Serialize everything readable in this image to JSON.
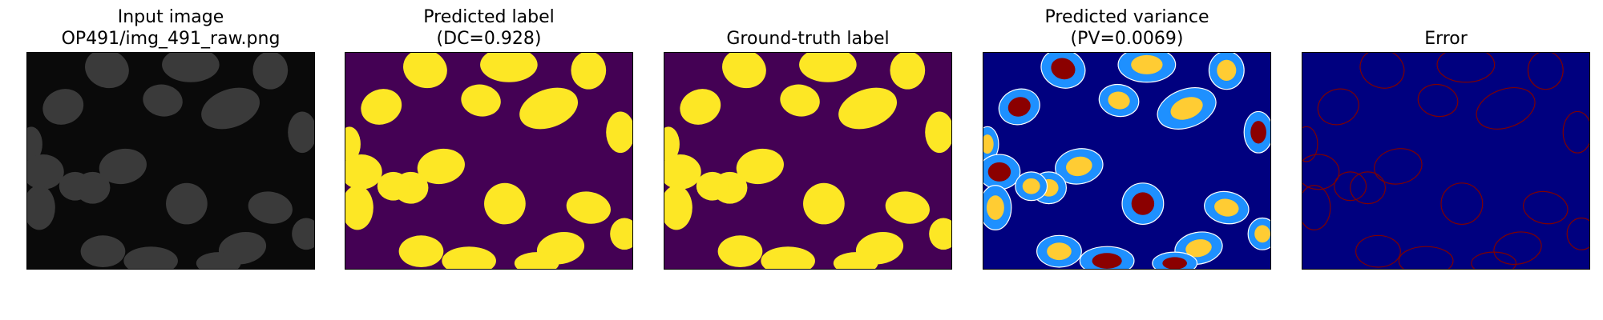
{
  "panels": [
    {
      "title_line1": "Input image",
      "title_line2": "OP491/img_491_raw.png"
    },
    {
      "title_line1": "Predicted label",
      "title_line2": "(DC=0.928)"
    },
    {
      "title_line1": "",
      "title_line2": "Ground-truth label"
    },
    {
      "title_line1": "Predicted variance",
      "title_line2": "(PV=0.0069)"
    },
    {
      "title_line1": "",
      "title_line2": "Error"
    }
  ],
  "colors": {
    "raw_background": "#0a0a0a",
    "raw_nucleus": "#3a3a3a",
    "label_background": "#440154",
    "label_foreground": "#fde725",
    "variance_background": "#00007f",
    "variance_ring": "#1e90ff",
    "variance_high": "#8b0000",
    "error_background": "#00007f",
    "error_marks": "#7f0000"
  }
}
